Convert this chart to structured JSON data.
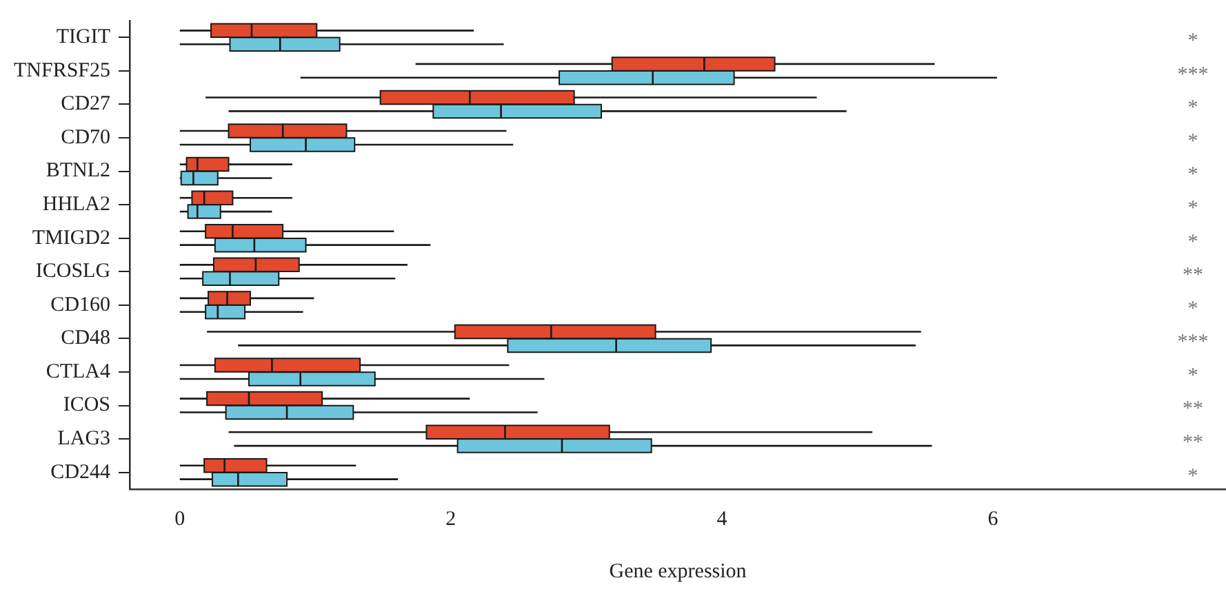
{
  "chart_data": {
    "type": "box",
    "orientation": "horizontal",
    "xlabel": "Gene expression",
    "categories": [
      "TIGIT",
      "TNFRSF25",
      "CD27",
      "CD70",
      "BTNL2",
      "HHLA2",
      "TMIGD2",
      "ICOSLG",
      "CD160",
      "CD48",
      "CTLA4",
      "ICOS",
      "LAG3",
      "CD244"
    ],
    "xlim": [
      -0.37,
      7.72
    ],
    "xticks": [
      0,
      2,
      4,
      6
    ],
    "grid": false,
    "legend": false,
    "series": [
      {
        "color": "#e2492d",
        "boxes": [
          {
            "low": 0,
            "q1": 0.23,
            "median": 0.53,
            "q3": 1.01,
            "high": 2.17
          },
          {
            "low": 1.74,
            "q1": 3.19,
            "median": 3.87,
            "q3": 4.39,
            "high": 5.57
          },
          {
            "low": 0.19,
            "q1": 1.48,
            "median": 2.14,
            "q3": 2.91,
            "high": 4.7
          },
          {
            "low": 0,
            "q1": 0.36,
            "median": 0.76,
            "q3": 1.23,
            "high": 2.41
          },
          {
            "low": 0,
            "q1": 0.05,
            "median": 0.13,
            "q3": 0.36,
            "high": 0.83
          },
          {
            "low": 0,
            "q1": 0.09,
            "median": 0.18,
            "q3": 0.39,
            "high": 0.83
          },
          {
            "low": 0,
            "q1": 0.19,
            "median": 0.39,
            "q3": 0.76,
            "high": 1.58
          },
          {
            "low": 0,
            "q1": 0.25,
            "median": 0.56,
            "q3": 0.88,
            "high": 1.68
          },
          {
            "low": 0,
            "q1": 0.21,
            "median": 0.35,
            "q3": 0.52,
            "high": 0.99
          },
          {
            "low": 0.2,
            "q1": 2.03,
            "median": 2.74,
            "q3": 3.51,
            "high": 5.47
          },
          {
            "low": 0,
            "q1": 0.26,
            "median": 0.68,
            "q3": 1.33,
            "high": 2.43
          },
          {
            "low": 0,
            "q1": 0.2,
            "median": 0.51,
            "q3": 1.05,
            "high": 2.14
          },
          {
            "low": 0.36,
            "q1": 1.82,
            "median": 2.4,
            "q3": 3.17,
            "high": 5.11
          },
          {
            "low": 0,
            "q1": 0.18,
            "median": 0.33,
            "q3": 0.64,
            "high": 1.3
          }
        ]
      },
      {
        "color": "#6ec6dc",
        "boxes": [
          {
            "low": 0,
            "q1": 0.37,
            "median": 0.74,
            "q3": 1.18,
            "high": 2.39
          },
          {
            "low": 0.89,
            "q1": 2.8,
            "median": 3.49,
            "q3": 4.09,
            "high": 6.03
          },
          {
            "low": 0.36,
            "q1": 1.87,
            "median": 2.37,
            "q3": 3.11,
            "high": 4.92
          },
          {
            "low": 0,
            "q1": 0.52,
            "median": 0.93,
            "q3": 1.29,
            "high": 2.46
          },
          {
            "low": 0,
            "q1": 0.01,
            "median": 0.1,
            "q3": 0.28,
            "high": 0.68
          },
          {
            "low": 0,
            "q1": 0.06,
            "median": 0.13,
            "q3": 0.3,
            "high": 0.68
          },
          {
            "low": 0,
            "q1": 0.26,
            "median": 0.55,
            "q3": 0.93,
            "high": 1.85
          },
          {
            "low": 0,
            "q1": 0.17,
            "median": 0.37,
            "q3": 0.73,
            "high": 1.59
          },
          {
            "low": 0,
            "q1": 0.19,
            "median": 0.28,
            "q3": 0.48,
            "high": 0.91
          },
          {
            "low": 0.43,
            "q1": 2.42,
            "median": 3.22,
            "q3": 3.92,
            "high": 5.43
          },
          {
            "low": 0,
            "q1": 0.51,
            "median": 0.89,
            "q3": 1.44,
            "high": 2.69
          },
          {
            "low": 0,
            "q1": 0.34,
            "median": 0.79,
            "q3": 1.28,
            "high": 2.64
          },
          {
            "low": 0.4,
            "q1": 2.05,
            "median": 2.82,
            "q3": 3.48,
            "high": 5.55
          },
          {
            "low": 0,
            "q1": 0.24,
            "median": 0.43,
            "q3": 0.79,
            "high": 1.61
          }
        ]
      }
    ],
    "annotations": [
      "*",
      "***",
      "*",
      "*",
      "*",
      "*",
      "*",
      "**",
      "*",
      "***",
      "*",
      "**",
      "**",
      "*"
    ]
  }
}
